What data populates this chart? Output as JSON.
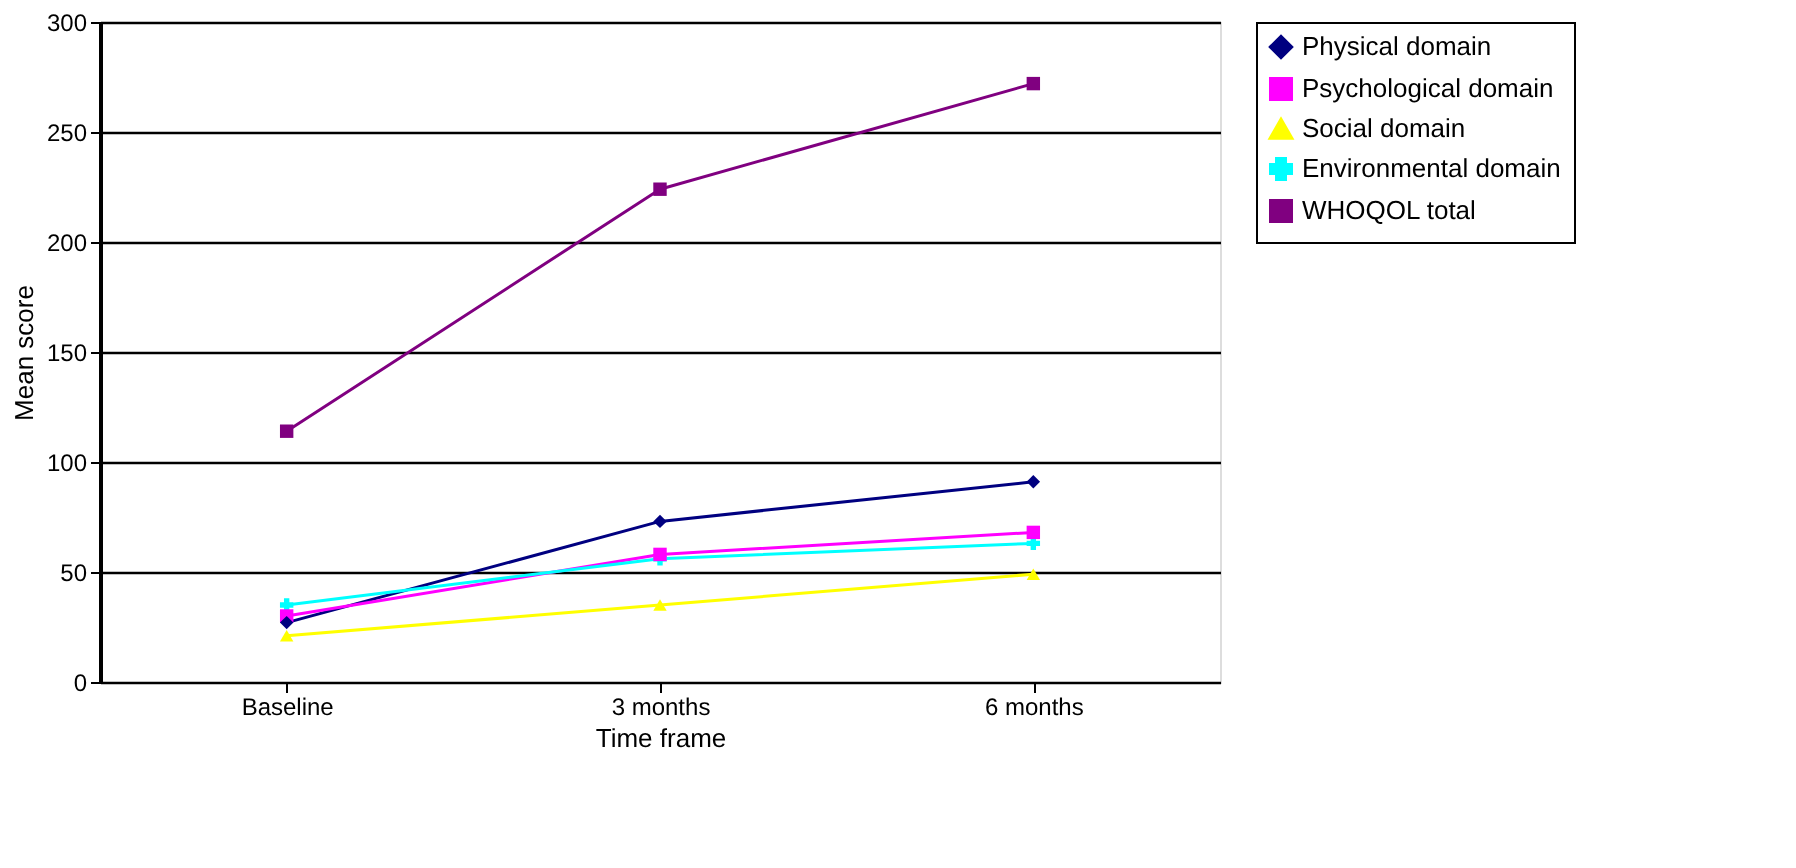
{
  "chart_data": {
    "type": "line",
    "xlabel": "Time frame",
    "ylabel": "Mean score",
    "categories": [
      "Baseline",
      "3 months",
      "6 months"
    ],
    "series": [
      {
        "name": "Physical domain",
        "color": "#000080",
        "marker": "diamond",
        "values": [
          27,
          73,
          91
        ]
      },
      {
        "name": "Psychological domain",
        "color": "#ff00ff",
        "marker": "square",
        "values": [
          30,
          58,
          68
        ]
      },
      {
        "name": "Social domain",
        "color": "#ffff00",
        "marker": "triangle",
        "values": [
          21,
          35,
          49
        ]
      },
      {
        "name": "Environmental domain",
        "color": "#00ffff",
        "marker": "cross",
        "values": [
          35,
          56,
          63
        ]
      },
      {
        "name": "WHOQOL total",
        "color": "#800080",
        "marker": "square",
        "values": [
          114,
          224,
          272
        ]
      }
    ],
    "ylim": [
      0,
      300
    ],
    "yticks": [
      0,
      50,
      100,
      150,
      200,
      250,
      300
    ],
    "grid": "y",
    "legend": "right"
  }
}
